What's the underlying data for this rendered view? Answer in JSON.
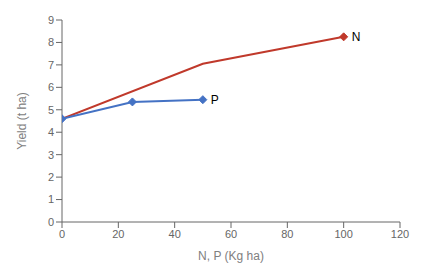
{
  "chart_data": {
    "type": "line",
    "xlabel": "N, P (Kg ha)",
    "ylabel": "Yield (t ha)",
    "xlim": [
      0,
      120
    ],
    "ylim": [
      0,
      9
    ],
    "xticks": [
      0,
      20,
      40,
      60,
      80,
      100,
      120
    ],
    "yticks": [
      0,
      1,
      2,
      3,
      4,
      5,
      6,
      7,
      8,
      9
    ],
    "grid": false,
    "series": [
      {
        "name": "N",
        "color": "#c0392b",
        "x": [
          0,
          50,
          100
        ],
        "values": [
          4.6,
          7.05,
          8.25
        ],
        "marker": "diamond",
        "marker_x": [
          100
        ]
      },
      {
        "name": "P",
        "color": "#4472c4",
        "x": [
          0,
          25,
          50
        ],
        "values": [
          4.6,
          5.35,
          5.45
        ],
        "marker": "diamond"
      }
    ]
  }
}
